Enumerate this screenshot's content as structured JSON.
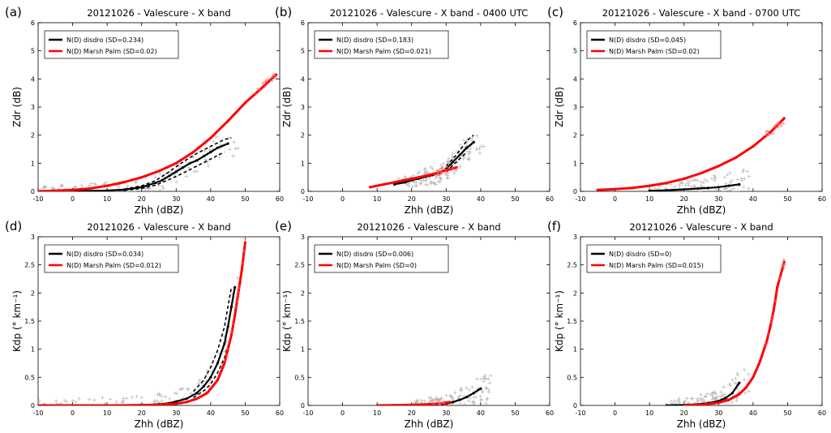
{
  "chart_data": [
    {
      "panel": "(a)",
      "type": "scatter",
      "title": "20121026 - Valescure - X band",
      "xlabel": "Zhh (dBZ)",
      "ylabel": "Zdr (dB)",
      "xlim": [
        -10,
        60
      ],
      "ylim": [
        0,
        6
      ],
      "xticks": [
        -10,
        0,
        10,
        20,
        30,
        40,
        50,
        60
      ],
      "yticks": [
        0,
        1,
        2,
        3,
        4,
        5,
        6
      ],
      "legend": "top-left",
      "series": [
        {
          "name": "N(D) disdro (SD=0.234)",
          "color": "#000000",
          "points": [
            [
              -10,
              0
            ],
            [
              0,
              0.01
            ],
            [
              10,
              0.03
            ],
            [
              15,
              0.06
            ],
            [
              20,
              0.15
            ],
            [
              24,
              0.3
            ],
            [
              26,
              0.4
            ],
            [
              28,
              0.55
            ],
            [
              30,
              0.7
            ],
            [
              32,
              0.85
            ],
            [
              34,
              1.0
            ],
            [
              36,
              1.1
            ],
            [
              38,
              1.25
            ],
            [
              40,
              1.4
            ],
            [
              42,
              1.55
            ],
            [
              45,
              1.7
            ]
          ],
          "upper": [
            [
              15,
              0.08
            ],
            [
              20,
              0.2
            ],
            [
              24,
              0.38
            ],
            [
              28,
              0.7
            ],
            [
              32,
              1.05
            ],
            [
              36,
              1.35
            ],
            [
              40,
              1.6
            ],
            [
              44,
              1.85
            ],
            [
              46,
              1.9
            ]
          ],
          "lower": [
            [
              15,
              0.04
            ],
            [
              20,
              0.1
            ],
            [
              24,
              0.22
            ],
            [
              28,
              0.42
            ],
            [
              32,
              0.65
            ],
            [
              36,
              0.9
            ],
            [
              40,
              1.15
            ],
            [
              44,
              1.4
            ]
          ]
        },
        {
          "name": "N(D) Marsh Palm (SD=0.02)",
          "color": "#ff0000",
          "points": [
            [
              -10,
              0.0
            ],
            [
              0,
              0.05
            ],
            [
              5,
              0.1
            ],
            [
              10,
              0.2
            ],
            [
              15,
              0.33
            ],
            [
              20,
              0.5
            ],
            [
              25,
              0.72
            ],
            [
              30,
              1.0
            ],
            [
              35,
              1.4
            ],
            [
              40,
              1.9
            ],
            [
              45,
              2.5
            ],
            [
              50,
              3.15
            ],
            [
              55,
              3.7
            ],
            [
              59,
              4.15
            ]
          ]
        }
      ]
    },
    {
      "panel": "(b)",
      "type": "scatter",
      "title": "20121026 - Valescure - X band - 0400 UTC",
      "xlabel": "Zhh (dBZ)",
      "ylabel": "Zdr (dB)",
      "xlim": [
        -10,
        60
      ],
      "ylim": [
        0,
        6
      ],
      "xticks": [
        -10,
        0,
        10,
        20,
        30,
        40,
        50,
        60
      ],
      "yticks": [
        0,
        1,
        2,
        3,
        4,
        5,
        6
      ],
      "legend": "top-left",
      "series": [
        {
          "name": "N(D) disdro (SD=0.183)",
          "color": "#000000",
          "points": [
            [
              15,
              0.25
            ],
            [
              18,
              0.32
            ],
            [
              20,
              0.4
            ],
            [
              22,
              0.45
            ],
            [
              24,
              0.52
            ],
            [
              26,
              0.58
            ],
            [
              28,
              0.65
            ],
            [
              30,
              0.8
            ],
            [
              32,
              1.05
            ],
            [
              34,
              1.3
            ],
            [
              36,
              1.55
            ],
            [
              38,
              1.75
            ]
          ],
          "upper": [
            [
              30,
              0.9
            ],
            [
              33,
              1.3
            ],
            [
              36,
              1.8
            ],
            [
              38,
              2.0
            ]
          ],
          "lower": [
            [
              30,
              0.7
            ],
            [
              33,
              1.05
            ],
            [
              36,
              1.4
            ]
          ]
        },
        {
          "name": "N(D) Marsh Palm (SD=0.021)",
          "color": "#ff0000",
          "points": [
            [
              8,
              0.15
            ],
            [
              12,
              0.25
            ],
            [
              15,
              0.32
            ],
            [
              18,
              0.4
            ],
            [
              21,
              0.47
            ],
            [
              24,
              0.55
            ],
            [
              27,
              0.64
            ],
            [
              30,
              0.75
            ],
            [
              33,
              0.85
            ]
          ]
        }
      ]
    },
    {
      "panel": "(c)",
      "type": "scatter",
      "title": "20121026 - Valescure - X band - 0700 UTC",
      "xlabel": "Zhh (dBZ)",
      "ylabel": "Zdr (dB)",
      "xlim": [
        -10,
        60
      ],
      "ylim": [
        0,
        6
      ],
      "xticks": [
        -10,
        0,
        10,
        20,
        30,
        40,
        50,
        60
      ],
      "yticks": [
        0,
        1,
        2,
        3,
        4,
        5,
        6
      ],
      "legend": "top-left",
      "series": [
        {
          "name": "N(D) disdro (SD=0.045)",
          "color": "#000000",
          "points": [
            [
              10,
              0.02
            ],
            [
              15,
              0.04
            ],
            [
              20,
              0.07
            ],
            [
              24,
              0.1
            ],
            [
              27,
              0.12
            ],
            [
              30,
              0.15
            ],
            [
              33,
              0.2
            ],
            [
              36,
              0.25
            ]
          ]
        },
        {
          "name": "N(D) Marsh Palm (SD=0.02)",
          "color": "#ff0000",
          "points": [
            [
              -5,
              0.05
            ],
            [
              0,
              0.08
            ],
            [
              5,
              0.12
            ],
            [
              10,
              0.2
            ],
            [
              15,
              0.3
            ],
            [
              20,
              0.45
            ],
            [
              25,
              0.65
            ],
            [
              30,
              0.9
            ],
            [
              35,
              1.2
            ],
            [
              40,
              1.6
            ],
            [
              45,
              2.1
            ],
            [
              49,
              2.6
            ]
          ]
        }
      ]
    },
    {
      "panel": "(d)",
      "type": "scatter",
      "title": "20121026 - Valescure - X band",
      "xlabel": "Zhh (dBZ)",
      "ylabel": "Kdp (° km⁻¹)",
      "xlim": [
        -10,
        60
      ],
      "ylim": [
        0,
        3
      ],
      "xticks": [
        -10,
        0,
        10,
        20,
        30,
        40,
        50,
        60
      ],
      "yticks": [
        0,
        0.5,
        1,
        1.5,
        2,
        2.5,
        3
      ],
      "legend": "top-left",
      "series": [
        {
          "name": "N(D) disdro (SD=0.034)",
          "color": "#000000",
          "points": [
            [
              -10,
              0
            ],
            [
              10,
              0
            ],
            [
              20,
              0.01
            ],
            [
              25,
              0.02
            ],
            [
              28,
              0.04
            ],
            [
              30,
              0.07
            ],
            [
              33,
              0.12
            ],
            [
              36,
              0.22
            ],
            [
              38,
              0.34
            ],
            [
              40,
              0.5
            ],
            [
              42,
              0.75
            ],
            [
              44,
              1.1
            ],
            [
              45,
              1.4
            ],
            [
              46,
              1.75
            ],
            [
              47,
              2.1
            ]
          ],
          "upper": [
            [
              35,
              0.25
            ],
            [
              38,
              0.45
            ],
            [
              40,
              0.68
            ],
            [
              42,
              0.98
            ],
            [
              44,
              1.4
            ],
            [
              45,
              1.75
            ],
            [
              46,
              2.1
            ]
          ],
          "lower": [
            [
              35,
              0.14
            ],
            [
              38,
              0.26
            ],
            [
              40,
              0.38
            ],
            [
              42,
              0.58
            ],
            [
              44,
              0.85
            ],
            [
              46,
              1.25
            ]
          ]
        },
        {
          "name": "N(D) Marsh Palm (SD=0.012)",
          "color": "#ff0000",
          "points": [
            [
              -10,
              0
            ],
            [
              10,
              0
            ],
            [
              20,
              0.005
            ],
            [
              25,
              0.01
            ],
            [
              30,
              0.03
            ],
            [
              33,
              0.06
            ],
            [
              36,
              0.12
            ],
            [
              39,
              0.22
            ],
            [
              42,
              0.45
            ],
            [
              44,
              0.75
            ],
            [
              46,
              1.25
            ],
            [
              47,
              1.6
            ],
            [
              48,
              2.0
            ],
            [
              49,
              2.4
            ],
            [
              50,
              2.9
            ]
          ]
        }
      ]
    },
    {
      "panel": "(e)",
      "type": "scatter",
      "title": "20121026 - Valescure - X band",
      "xlabel": "Zhh (dBZ)",
      "ylabel": "Kdp (° km⁻¹)",
      "xlim": [
        -10,
        60
      ],
      "ylim": [
        0,
        3
      ],
      "xticks": [
        -10,
        0,
        10,
        20,
        30,
        40,
        50,
        60
      ],
      "yticks": [
        0,
        0.5,
        1,
        1.5,
        2,
        2.5,
        3
      ],
      "legend": "top-left",
      "series": [
        {
          "name": "N(D) disdro (SD=0.006)",
          "color": "#000000",
          "points": [
            [
              20,
              0.0
            ],
            [
              25,
              0.01
            ],
            [
              28,
              0.02
            ],
            [
              30,
              0.03
            ],
            [
              32,
              0.06
            ],
            [
              34,
              0.1
            ],
            [
              36,
              0.15
            ],
            [
              38,
              0.22
            ],
            [
              40,
              0.3
            ]
          ]
        },
        {
          "name": "N(D) Marsh Palm (SD=0)",
          "color": "#ff0000",
          "points": [
            [
              10,
              0.0
            ],
            [
              15,
              0.005
            ],
            [
              20,
              0.01
            ],
            [
              25,
              0.02
            ],
            [
              28,
              0.03
            ],
            [
              31,
              0.06
            ]
          ]
        }
      ]
    },
    {
      "panel": "(f)",
      "type": "scatter",
      "title": "20121026 - Valescure - X band",
      "xlabel": "Zhh (dBZ)",
      "ylabel": "Kdp (° km⁻¹)",
      "xlim": [
        -10,
        60
      ],
      "ylim": [
        0,
        3
      ],
      "xticks": [
        -10,
        0,
        10,
        20,
        30,
        40,
        50,
        60
      ],
      "yticks": [
        0,
        0.5,
        1,
        1.5,
        2,
        2.5,
        3
      ],
      "legend": "top-left",
      "series": [
        {
          "name": "N(D) disdro (SD=0)",
          "color": "#000000",
          "points": [
            [
              15,
              0.0
            ],
            [
              20,
              0.01
            ],
            [
              24,
              0.02
            ],
            [
              27,
              0.04
            ],
            [
              30,
              0.08
            ],
            [
              32,
              0.13
            ],
            [
              34,
              0.22
            ],
            [
              36,
              0.4
            ]
          ]
        },
        {
          "name": "N(D) Marsh Palm (SD=0.015)",
          "color": "#ff0000",
          "points": [
            [
              20,
              0.0
            ],
            [
              25,
              0.01
            ],
            [
              30,
              0.05
            ],
            [
              33,
              0.1
            ],
            [
              36,
              0.2
            ],
            [
              38,
              0.32
            ],
            [
              40,
              0.5
            ],
            [
              42,
              0.78
            ],
            [
              44,
              1.15
            ],
            [
              45,
              1.4
            ],
            [
              46,
              1.7
            ],
            [
              47,
              2.1
            ],
            [
              49,
              2.55
            ]
          ]
        }
      ]
    }
  ]
}
